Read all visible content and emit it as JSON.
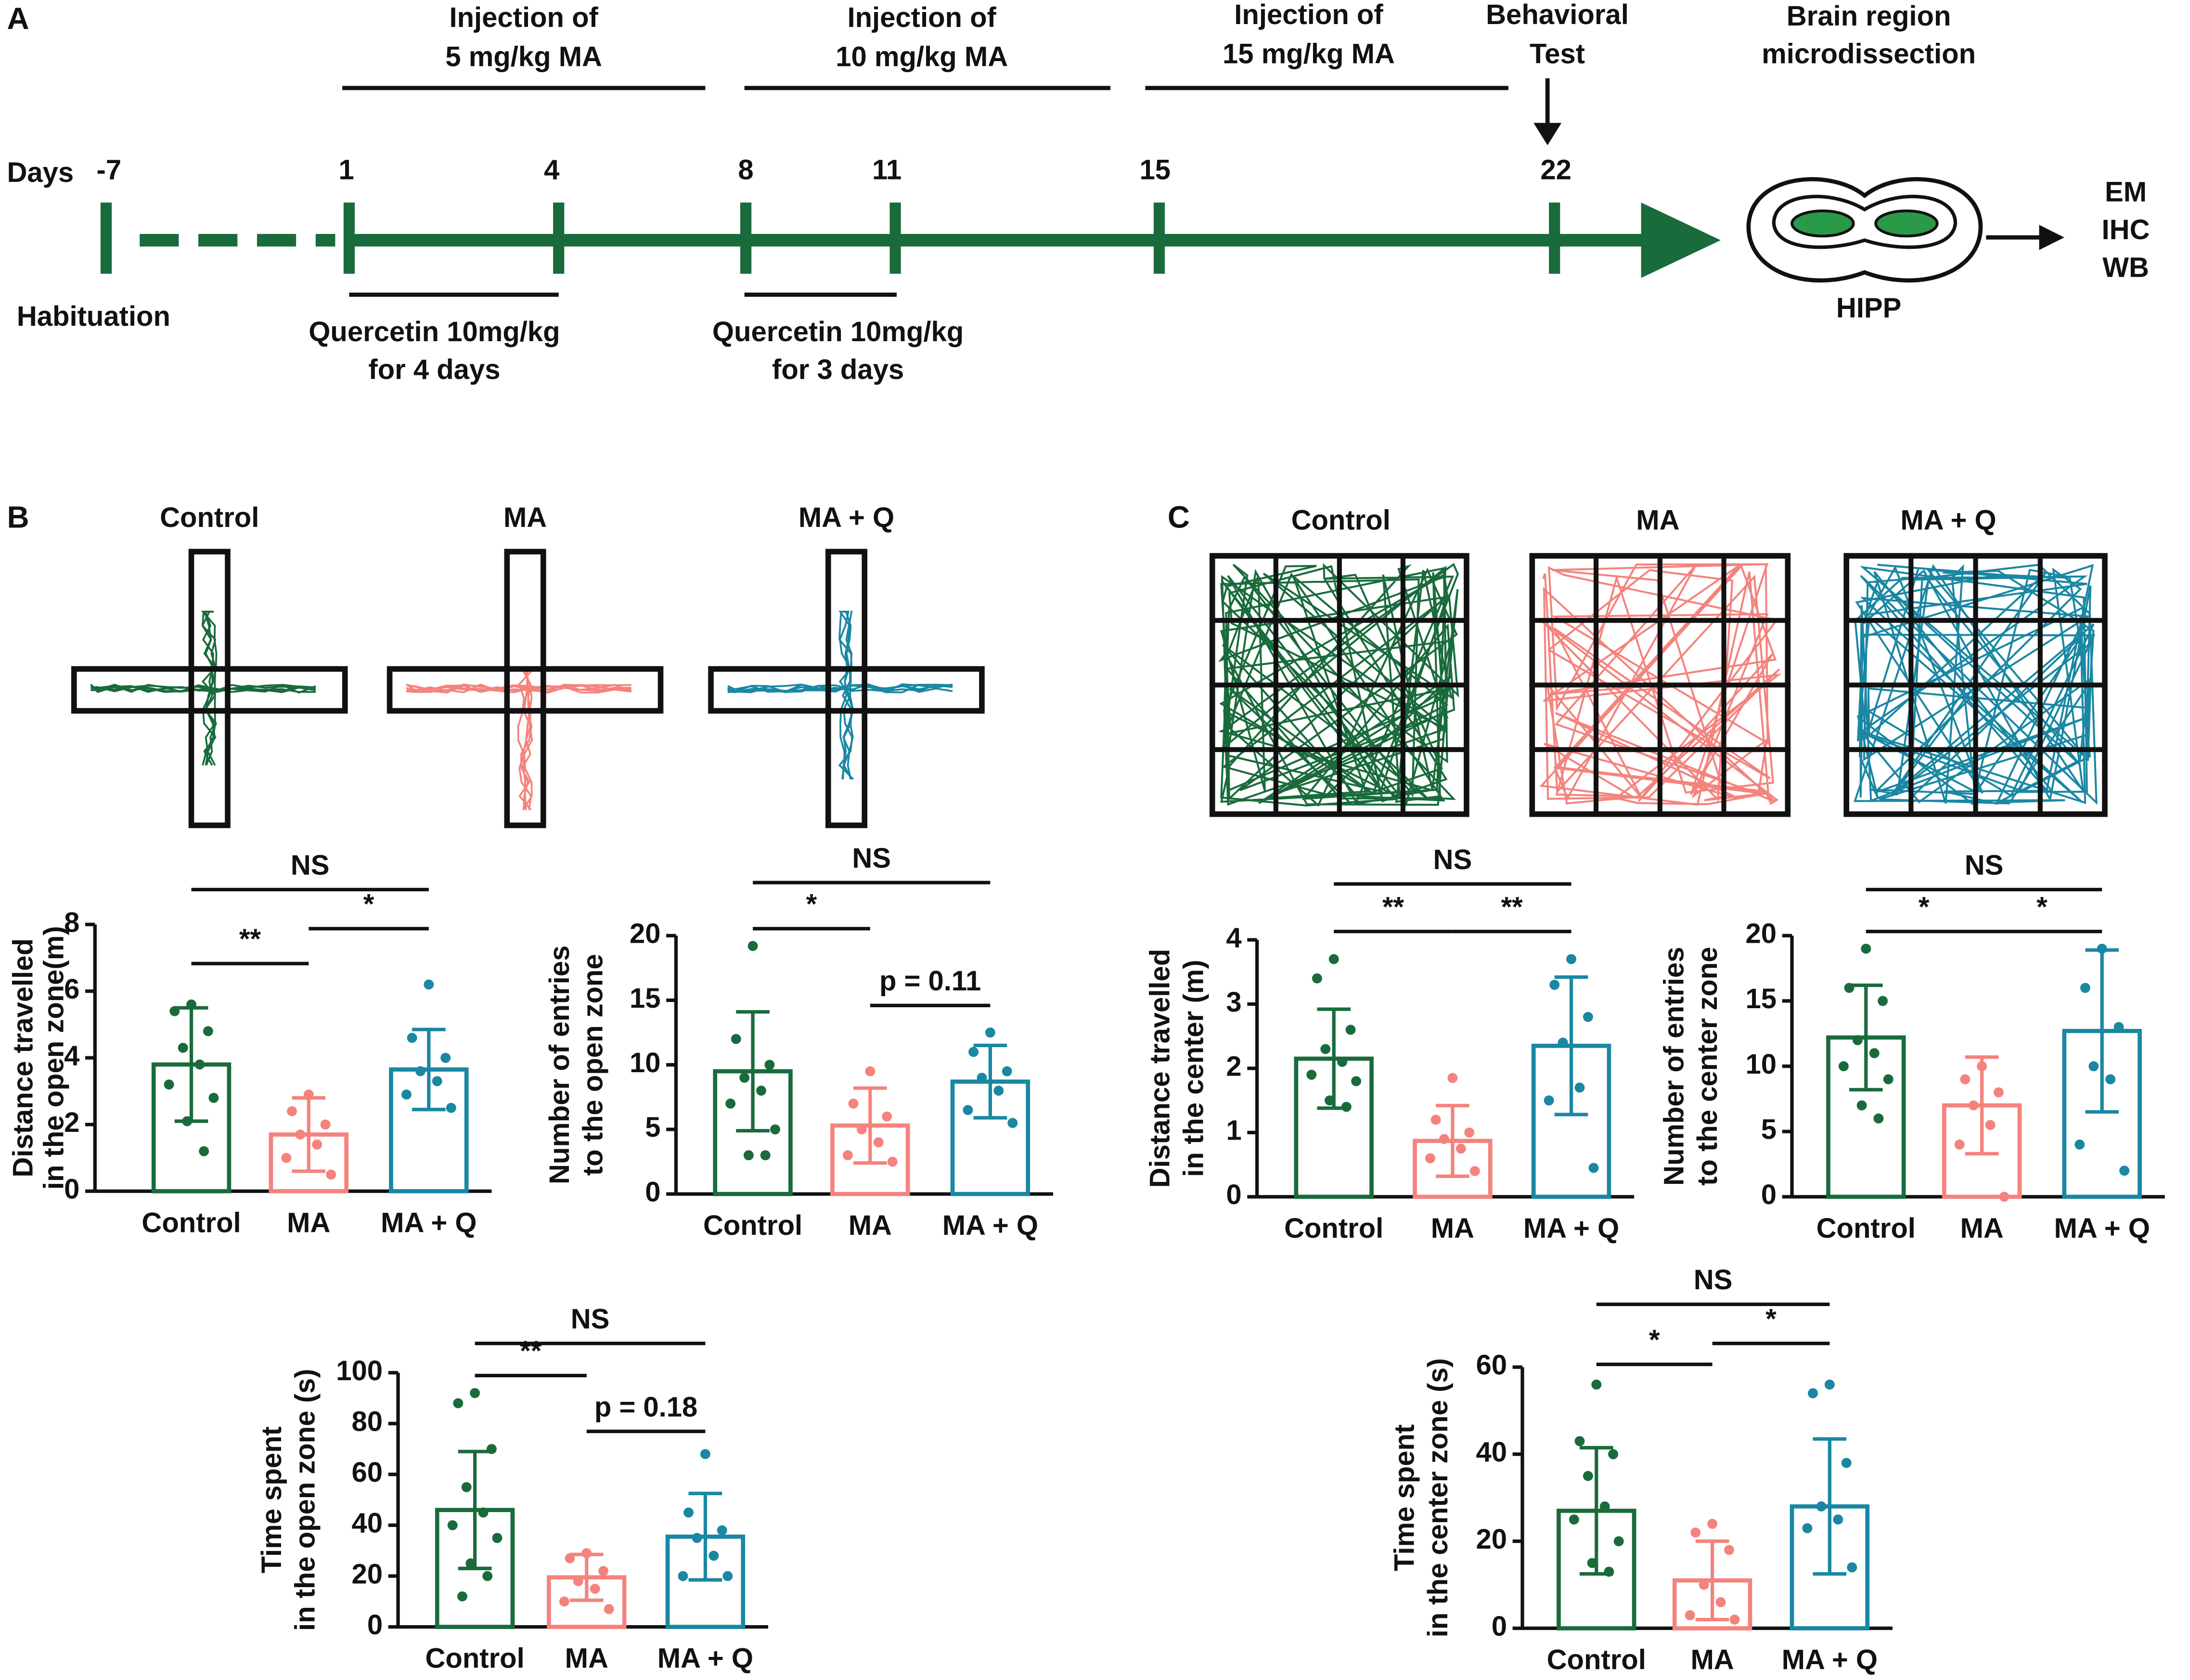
{
  "figure": {
    "panel_labels": [
      "A",
      "B",
      "C"
    ],
    "timeline": {
      "days_label": "Days",
      "days": [
        "-7",
        "1",
        "4",
        "8",
        "11",
        "15",
        "22"
      ],
      "habituation": "Habituation",
      "injections": [
        [
          "Injection  of",
          "5 mg/kg MA"
        ],
        [
          "Injection  of",
          "10 mg/kg MA"
        ],
        [
          "Injection  of",
          "15 mg/kg MA"
        ]
      ],
      "behavioral_test": [
        "Behavioral",
        "Test"
      ],
      "microdissection": [
        "Brain region",
        "microdissection"
      ],
      "quercetin": [
        [
          "Quercetin 10mg/kg",
          "for 4 days"
        ],
        [
          "Quercetin 10mg/kg",
          "for 3 days"
        ]
      ],
      "region": "HIPP",
      "assays": [
        "EM",
        "IHC",
        "WB"
      ]
    },
    "track_labels_b": [
      "Control",
      "MA",
      "MA + Q"
    ],
    "track_labels_c": [
      "Control",
      "MA",
      "MA + Q"
    ]
  },
  "chart_data": [
    {
      "type": "bar",
      "ylabel": [
        "Distance travelled",
        "in the open zone(m)"
      ],
      "categories": [
        "Control",
        "MA",
        "MA + Q"
      ],
      "colors": [
        "#1a6b3c",
        "#f4837d",
        "#1a87a3"
      ],
      "values": [
        3.8,
        1.7,
        3.65
      ],
      "errors": [
        1.7,
        1.1,
        1.2
      ],
      "points": [
        [
          5.6,
          5.4,
          4.8,
          4.3,
          3.8,
          3.2,
          2.8,
          2.1,
          1.2
        ],
        [
          2.9,
          2.4,
          2.0,
          1.7,
          1.4,
          1.0,
          0.5
        ],
        [
          6.2,
          4.6,
          4.0,
          3.6,
          3.3,
          2.9,
          2.5
        ]
      ],
      "ylim": [
        0,
        8
      ],
      "yticks": [
        0,
        2,
        4,
        6,
        8
      ],
      "comparisons": [
        "**",
        "*",
        "NS"
      ]
    },
    {
      "type": "bar",
      "ylabel": [
        "Number  of entries",
        "to the open zone"
      ],
      "categories": [
        "Control",
        "MA",
        "MA + Q"
      ],
      "colors": [
        "#1a6b3c",
        "#f4837d",
        "#1a87a3"
      ],
      "values": [
        9.5,
        5.3,
        8.7
      ],
      "errors": [
        4.6,
        2.9,
        2.8
      ],
      "points": [
        [
          19.2,
          12,
          10,
          9,
          8,
          7,
          5,
          3,
          3
        ],
        [
          9.5,
          7,
          6,
          5,
          4,
          3,
          2.5
        ],
        [
          12.5,
          11,
          9.5,
          9,
          8,
          6.5,
          5.5
        ]
      ],
      "ylim": [
        0,
        20
      ],
      "yticks": [
        0,
        5,
        10,
        15,
        20
      ],
      "comparisons": [
        "*",
        "p = 0.11",
        "NS"
      ]
    },
    {
      "type": "bar",
      "ylabel": [
        "Distance travelled",
        "in the center (m)"
      ],
      "categories": [
        "Control",
        "MA",
        "MA + Q"
      ],
      "colors": [
        "#1a6b3c",
        "#f4837d",
        "#1a87a3"
      ],
      "values": [
        2.15,
        0.87,
        2.35
      ],
      "errors": [
        0.77,
        0.55,
        1.07
      ],
      "points": [
        [
          3.7,
          3.4,
          2.6,
          2.3,
          2.1,
          1.9,
          1.8,
          1.5,
          1.4
        ],
        [
          1.85,
          1.2,
          1.0,
          0.9,
          0.75,
          0.6,
          0.4
        ],
        [
          3.7,
          3.3,
          2.8,
          2.4,
          1.7,
          1.5,
          0.45
        ]
      ],
      "ylim": [
        0,
        4
      ],
      "yticks": [
        0,
        1,
        2,
        3,
        4
      ],
      "comparisons": [
        "**",
        "**",
        "NS"
      ]
    },
    {
      "type": "bar",
      "ylabel": [
        "Number  of entries",
        "to the center zone"
      ],
      "categories": [
        "Control",
        "MA",
        "MA + Q"
      ],
      "colors": [
        "#1a6b3c",
        "#f4837d",
        "#1a87a3"
      ],
      "values": [
        12.2,
        7.0,
        12.7
      ],
      "errors": [
        4.0,
        3.7,
        6.2
      ],
      "points": [
        [
          19,
          16,
          15,
          12,
          11,
          10,
          9,
          7,
          6
        ],
        [
          10,
          9,
          8,
          7,
          5.5,
          4,
          0
        ],
        [
          19,
          16,
          13,
          10,
          9,
          4,
          2
        ]
      ],
      "ylim": [
        0,
        20
      ],
      "yticks": [
        0,
        5,
        10,
        15,
        20
      ],
      "comparisons": [
        "*",
        "*",
        "NS"
      ]
    },
    {
      "type": "bar",
      "ylabel": [
        "Time spent",
        "in the open zone (s)"
      ],
      "categories": [
        "Control",
        "MA",
        "MA + Q"
      ],
      "colors": [
        "#1a6b3c",
        "#f4837d",
        "#1a87a3"
      ],
      "values": [
        46,
        19.5,
        35.5
      ],
      "errors": [
        23,
        9,
        17
      ],
      "points": [
        [
          92,
          88,
          70,
          55,
          45,
          40,
          35,
          25,
          20,
          12
        ],
        [
          29,
          27,
          22,
          18,
          15,
          10,
          7
        ],
        [
          68,
          45,
          38,
          35,
          28,
          20,
          20
        ]
      ],
      "ylim": [
        0,
        100
      ],
      "yticks": [
        0,
        20,
        40,
        60,
        80,
        100
      ],
      "comparisons": [
        "**",
        "p = 0.18",
        "NS"
      ]
    },
    {
      "type": "bar",
      "ylabel": [
        "Time spent",
        "in the center zone (s)"
      ],
      "categories": [
        "Control",
        "MA",
        "MA + Q"
      ],
      "colors": [
        "#1a6b3c",
        "#f4837d",
        "#1a87a3"
      ],
      "values": [
        27,
        11,
        28
      ],
      "errors": [
        14.5,
        9,
        15.5
      ],
      "points": [
        [
          56,
          43,
          40,
          35,
          28,
          25,
          20,
          15,
          13
        ],
        [
          24,
          22,
          18,
          10,
          6,
          3,
          2
        ],
        [
          56,
          54,
          38,
          28,
          25,
          23,
          14
        ]
      ],
      "ylim": [
        0,
        60
      ],
      "yticks": [
        0,
        20,
        40,
        60
      ],
      "comparisons": [
        "*",
        "*",
        "NS"
      ]
    }
  ]
}
